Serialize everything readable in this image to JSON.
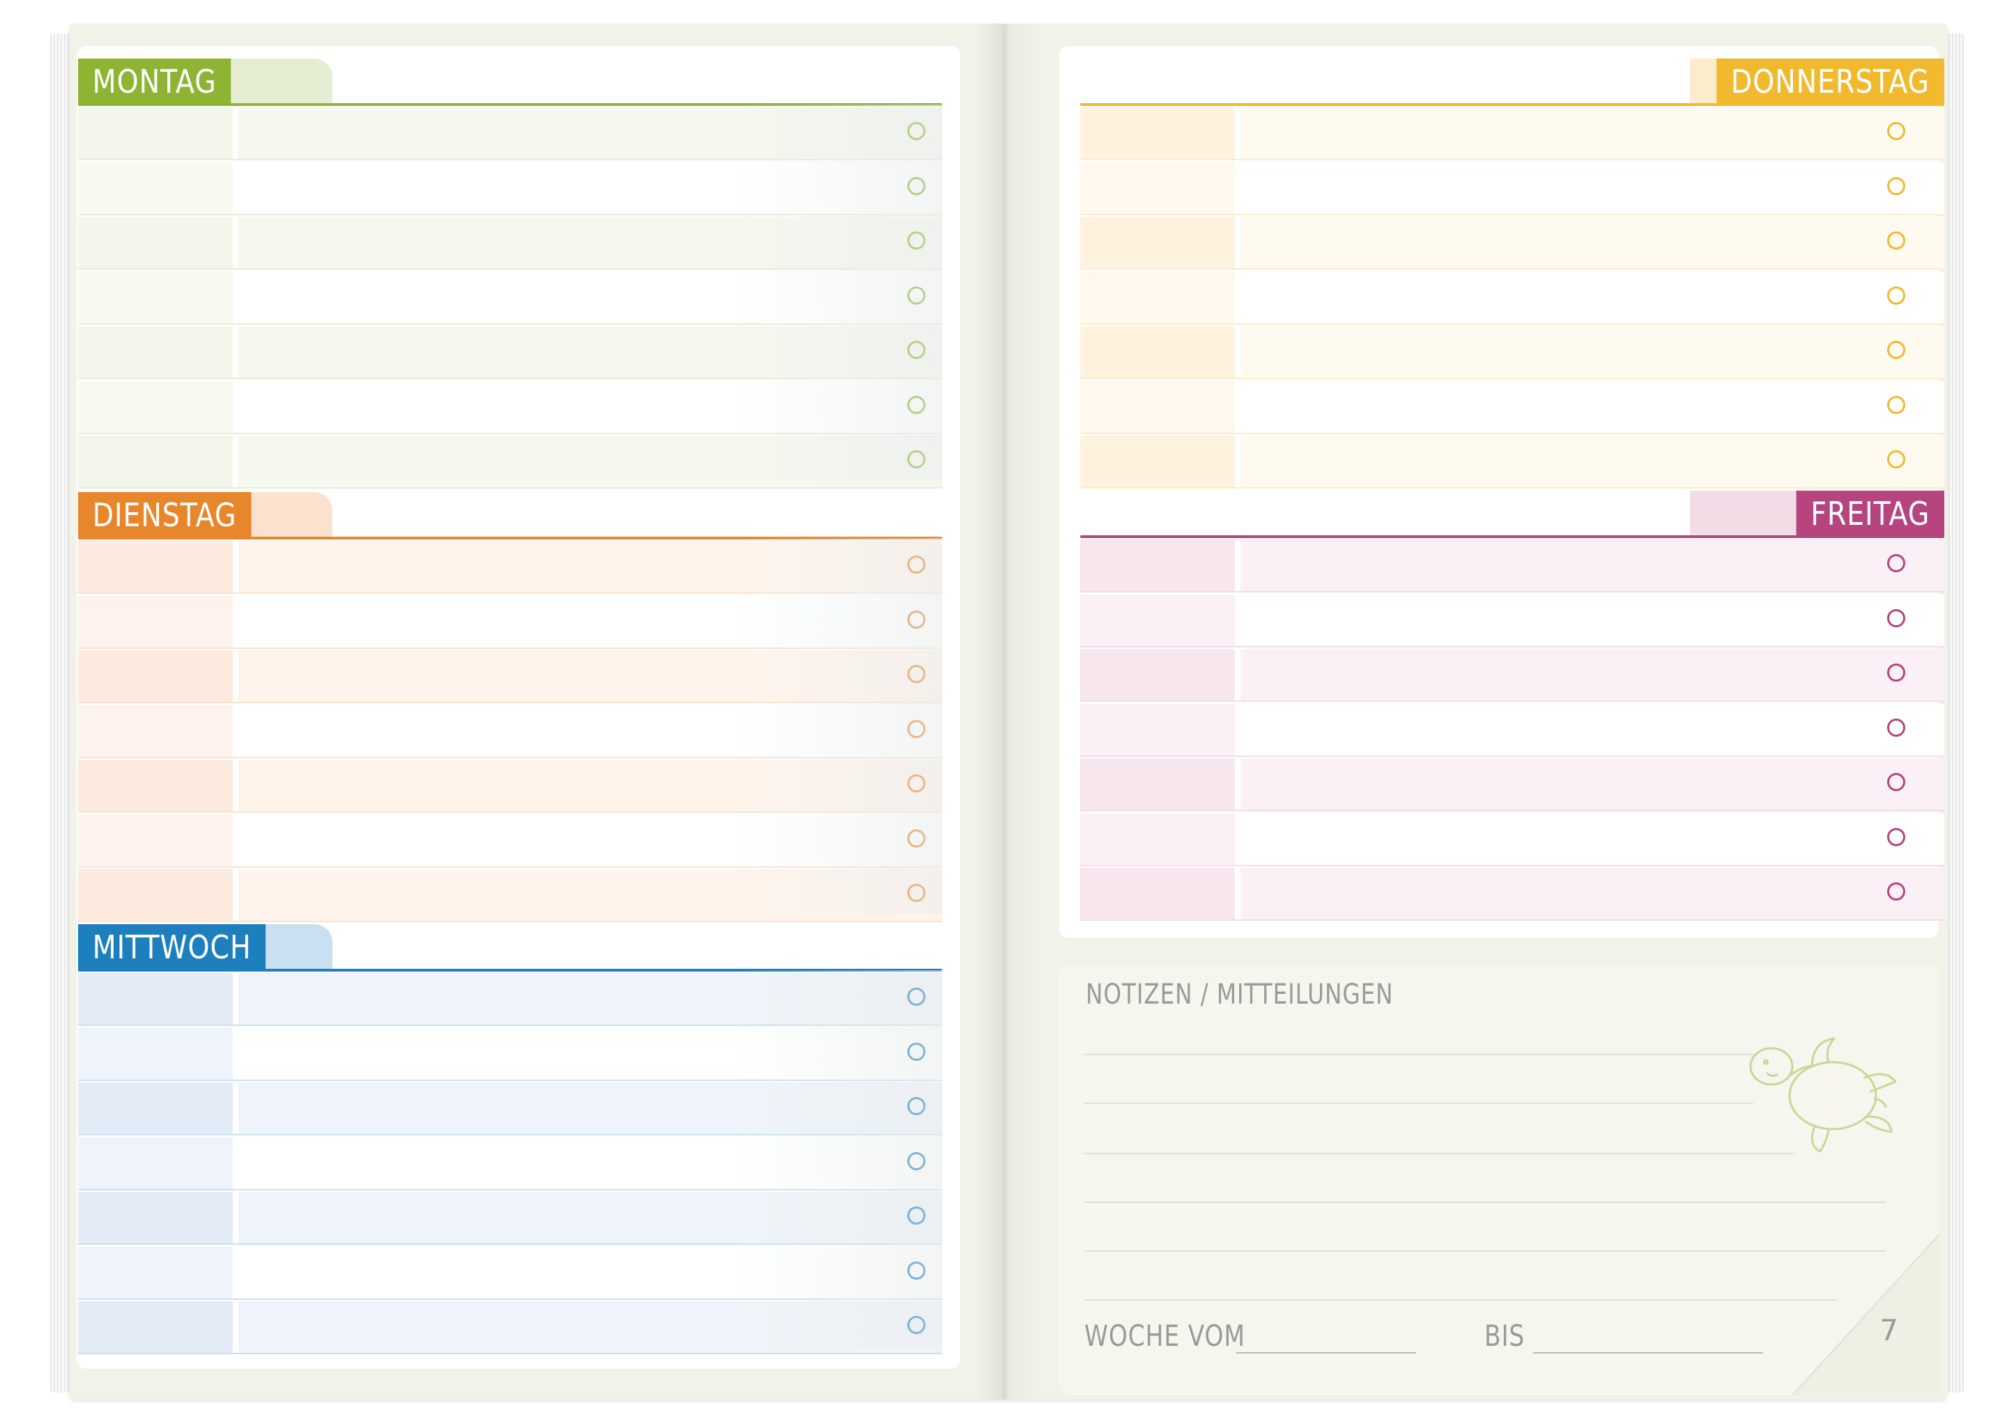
{
  "days": [
    {
      "name": "Montag",
      "label": "MONTAG",
      "color": "#8db533",
      "tint": "#e5eed3",
      "row_tint": "#f5f8ee",
      "time_tint": "#f3f6ea"
    },
    {
      "name": "Dienstag",
      "label": "DIENSTAG",
      "color": "#e8862c",
      "tint": "#fbe2ce",
      "row_tint": "#fff4ec",
      "time_tint": "#fdeadf"
    },
    {
      "name": "Mittwoch",
      "label": "MITTWOCH",
      "color": "#1e7fbf",
      "tint": "#c9e0f0",
      "row_tint": "#eef4fa",
      "time_tint": "#e3ecf6"
    },
    {
      "name": "Donnerstag",
      "label": "DONNERSTAG",
      "color": "#f1b92e",
      "tint": "#fdeccc",
      "row_tint": "#fffaf0",
      "time_tint": "#fff3df"
    },
    {
      "name": "Freitag",
      "label": "FREITAG",
      "color": "#b5447f",
      "tint": "#f2dde7",
      "row_tint": "#fbf0f5",
      "time_tint": "#f8e6ef"
    }
  ],
  "notes": {
    "title": "NOTIZEN / MITTEILUNGEN",
    "week_label": "WOCHE VOM",
    "bis_label": "BIS",
    "page_number": "7",
    "turtle_icon": "turtle-icon",
    "turtle_color": "#c6d894"
  },
  "rows_per_day": 7
}
